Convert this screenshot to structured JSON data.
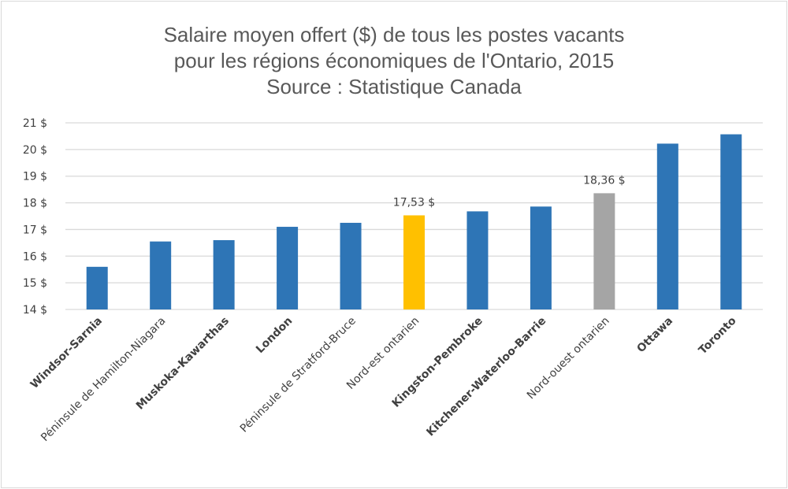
{
  "chart_data": {
    "type": "bar",
    "title": [
      "Salaire moyen offert ($) de tous les postes vacants",
      "pour les régions économiques de l'Ontario, 2015",
      "Source : Statistique Canada"
    ],
    "categories": [
      "Windsor-Sarnia",
      "Péninsule de Hamilton-Niagara",
      "Muskoka-Kawarthas",
      "London",
      "Péninsule de Stratford-Bruce",
      "Nord-est ontarien",
      "Kingston-Pembroke",
      "Kitchener-Waterloo-Barrie",
      "Nord-ouest ontarien",
      "Ottawa",
      "Toronto"
    ],
    "bold_categories": [
      true,
      false,
      true,
      true,
      false,
      false,
      true,
      true,
      false,
      true,
      true
    ],
    "values": [
      15.6,
      16.55,
      16.6,
      17.1,
      17.25,
      17.53,
      17.68,
      17.86,
      18.36,
      20.22,
      20.57
    ],
    "bar_colors": [
      "#2e75b6",
      "#2e75b6",
      "#2e75b6",
      "#2e75b6",
      "#2e75b6",
      "#ffc000",
      "#2e75b6",
      "#2e75b6",
      "#a5a5a5",
      "#2e75b6",
      "#2e75b6"
    ],
    "data_labels": [
      "",
      "",
      "",
      "",
      "",
      "17,53 $",
      "",
      "",
      "18,36 $",
      "",
      ""
    ],
    "ylim": [
      14,
      21
    ],
    "yticks": [
      "14 $",
      "15 $",
      "16 $",
      "17 $",
      "18 $",
      "19 $",
      "20 $",
      "21 $"
    ],
    "grid": true,
    "gridline_color": "#d9d9d9"
  }
}
